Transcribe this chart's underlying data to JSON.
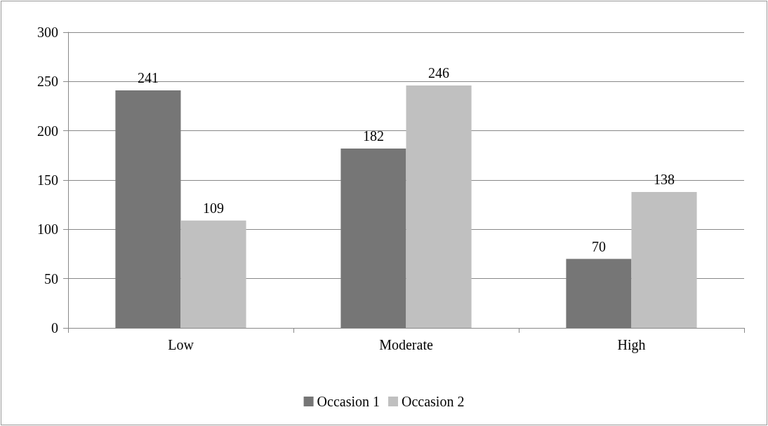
{
  "chart_data": {
    "type": "bar",
    "categories": [
      "Low",
      "Moderate",
      "High"
    ],
    "series": [
      {
        "name": "Occasion 1",
        "color": "#767676",
        "values": [
          241,
          182,
          70
        ]
      },
      {
        "name": "Occasion 2",
        "color": "#c0c0c0",
        "values": [
          109,
          246,
          138
        ]
      }
    ],
    "ylim": [
      0,
      300
    ],
    "yticks": [
      0,
      50,
      100,
      150,
      200,
      250,
      300
    ],
    "grid": "y",
    "legend": "bottom",
    "data_labels": true
  }
}
